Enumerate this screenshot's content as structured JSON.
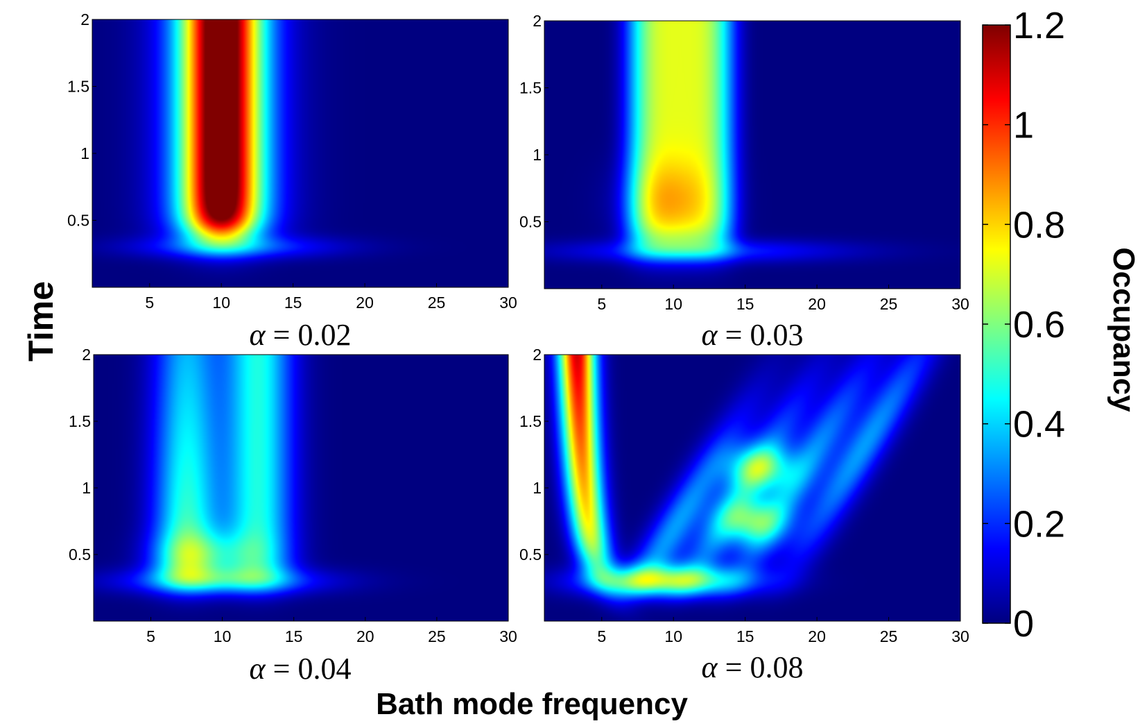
{
  "chart_data": {
    "type": "heatmap",
    "xlabel": "Bath mode frequency",
    "ylabel": "Time",
    "colorbar": {
      "label": "Occupancy",
      "range": [
        0,
        1.2
      ],
      "ticks": [
        "0",
        "0.2",
        "0.4",
        "0.6",
        "0.8",
        "1",
        "1.2"
      ],
      "colormap": "jet"
    },
    "xlim": [
      1,
      30
    ],
    "ylim": [
      0,
      2
    ],
    "x_ticks": [
      "5",
      "10",
      "15",
      "20",
      "25",
      "30"
    ],
    "y_ticks": [
      "0.5",
      "1",
      "1.5",
      "2"
    ],
    "panels": [
      {
        "title": "α = 0.02",
        "title_symbol": "α",
        "title_rest": " = 0.02",
        "kind": "single_band",
        "peak_occupancy": 1.05,
        "peak_frequency": 10,
        "rise_time": 0.4
      },
      {
        "title": "α = 0.03",
        "title_symbol": "α",
        "title_rest": " = 0.03",
        "kind": "single_band",
        "peak_occupancy": 0.8,
        "peak_frequency": 9.5,
        "peak_time": 0.65,
        "plateau_occupancy": 0.72
      },
      {
        "title": "α = 0.04",
        "title_symbol": "α",
        "title_rest": " = 0.04",
        "kind": "split_band",
        "peak_occupancy": 0.72,
        "peak_frequency": 9,
        "peak_time": 0.5,
        "plateau_occupancy": 0.6
      },
      {
        "title": "α = 0.08",
        "title_symbol": "α",
        "title_rest": " = 0.08",
        "kind": "fringes",
        "peak_occupancy": 1.05,
        "peak_frequency": 3.5,
        "peak_time": 1.9,
        "secondary_spots": [
          {
            "frequency": 15.5,
            "time": 0.75,
            "occupancy": 0.45
          },
          {
            "frequency": 16,
            "time": 1.15,
            "occupancy": 0.45
          },
          {
            "frequency": 9.5,
            "time": 0.3,
            "occupancy": 0.55
          }
        ]
      }
    ]
  }
}
